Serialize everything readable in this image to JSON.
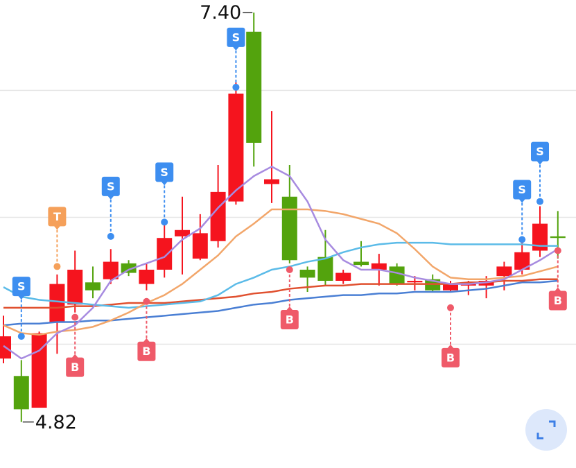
{
  "chart_data": {
    "type": "candlestick",
    "ylim": [
      4.53,
      7.48
    ],
    "gridlines": [
      6.91,
      6.11,
      5.31
    ],
    "up_color": "#f5141e",
    "down_color": "#53a30d",
    "open": [
      5.22,
      5.11,
      4.91,
      5.45,
      5.56,
      5.7,
      5.72,
      5.82,
      5.69,
      5.78,
      5.99,
      5.85,
      5.96,
      6.21,
      7.28,
      6.32,
      6.24,
      5.78,
      5.86,
      5.71,
      5.83,
      5.78,
      5.8,
      5.7,
      5.72,
      5.65,
      5.68,
      5.68,
      5.74,
      5.78,
      5.9,
      5.99
    ],
    "high": [
      5.49,
      5.21,
      5.39,
      5.75,
      5.9,
      5.8,
      5.91,
      5.84,
      5.82,
      6.06,
      6.24,
      6.13,
      6.44,
      6.96,
      7.4,
      6.78,
      6.44,
      5.8,
      6.03,
      5.78,
      5.96,
      5.88,
      5.82,
      5.74,
      5.75,
      5.71,
      5.71,
      5.74,
      5.83,
      5.99,
      6.18,
      6.15
    ],
    "low": [
      5.19,
      4.82,
      4.91,
      5.25,
      5.51,
      5.6,
      5.69,
      5.74,
      5.65,
      5.73,
      5.75,
      5.84,
      5.92,
      6.19,
      6.43,
      6.2,
      5.82,
      5.64,
      5.68,
      5.69,
      5.8,
      5.68,
      5.68,
      5.65,
      5.64,
      5.64,
      5.62,
      5.6,
      5.65,
      5.75,
      5.86,
      5.85
    ],
    "close": [
      5.36,
      4.9,
      5.38,
      5.69,
      5.78,
      5.65,
      5.83,
      5.76,
      5.78,
      5.98,
      6.03,
      6.01,
      6.27,
      6.89,
      6.58,
      6.35,
      5.84,
      5.73,
      5.71,
      5.76,
      5.81,
      5.82,
      5.69,
      5.71,
      5.65,
      5.69,
      5.69,
      5.71,
      5.8,
      5.89,
      6.07,
      5.98
    ],
    "series": [
      {
        "color": "#4a7fd4",
        "values": [
          5.43,
          5.44,
          5.44,
          5.45,
          5.45,
          5.46,
          5.46,
          5.47,
          5.48,
          5.49,
          5.5,
          5.51,
          5.52,
          5.54,
          5.56,
          5.57,
          5.59,
          5.6,
          5.61,
          5.62,
          5.62,
          5.63,
          5.63,
          5.64,
          5.64,
          5.64,
          5.65,
          5.66,
          5.68,
          5.7,
          5.7,
          5.71
        ]
      },
      {
        "color": "#e0502f",
        "values": [
          5.54,
          5.54,
          5.54,
          5.54,
          5.55,
          5.55,
          5.56,
          5.57,
          5.57,
          5.57,
          5.58,
          5.59,
          5.6,
          5.61,
          5.63,
          5.64,
          5.66,
          5.67,
          5.68,
          5.68,
          5.69,
          5.69,
          5.69,
          5.69,
          5.69,
          5.69,
          5.7,
          5.7,
          5.71,
          5.71,
          5.72,
          5.72
        ]
      },
      {
        "color": "#5bbbe8",
        "values": [
          5.67,
          5.61,
          5.59,
          5.58,
          5.57,
          5.56,
          5.55,
          5.54,
          5.55,
          5.56,
          5.57,
          5.58,
          5.62,
          5.69,
          5.73,
          5.78,
          5.8,
          5.83,
          5.85,
          5.89,
          5.92,
          5.94,
          5.95,
          5.95,
          5.95,
          5.94,
          5.94,
          5.94,
          5.94,
          5.94,
          5.93,
          5.93
        ]
      },
      {
        "color": "#f2a66a",
        "values": [
          5.43,
          5.38,
          5.37,
          5.39,
          5.4,
          5.42,
          5.46,
          5.51,
          5.57,
          5.62,
          5.69,
          5.78,
          5.87,
          5.99,
          6.07,
          6.16,
          6.16,
          6.16,
          6.15,
          6.13,
          6.1,
          6.07,
          6.01,
          5.91,
          5.8,
          5.73,
          5.72,
          5.72,
          5.73,
          5.74,
          5.77,
          5.8
        ]
      },
      {
        "color": "#a78be0",
        "values": [
          5.3,
          5.22,
          5.27,
          5.38,
          5.43,
          5.54,
          5.71,
          5.78,
          5.82,
          5.86,
          5.97,
          6.04,
          6.17,
          6.28,
          6.37,
          6.43,
          6.37,
          6.21,
          5.97,
          5.84,
          5.78,
          5.78,
          5.76,
          5.73,
          5.71,
          5.69,
          5.69,
          5.7,
          5.72,
          5.78,
          5.84,
          5.91
        ]
      }
    ],
    "signals": [
      null,
      "S",
      null,
      "T",
      "B",
      null,
      "S",
      null,
      "B",
      "S",
      null,
      null,
      null,
      "S",
      null,
      null,
      "B",
      null,
      null,
      null,
      null,
      null,
      null,
      null,
      null,
      "B",
      null,
      null,
      null,
      "S",
      "S",
      "B"
    ],
    "signal_prices": [
      null,
      5.36,
      null,
      5.8,
      5.48,
      null,
      5.99,
      null,
      5.58,
      6.08,
      null,
      null,
      null,
      6.93,
      null,
      null,
      5.78,
      null,
      null,
      null,
      null,
      null,
      null,
      null,
      null,
      5.54,
      null,
      null,
      null,
      5.97,
      6.21,
      5.9
    ],
    "signal_colors": {
      "S": "#3d8ef0",
      "B": "#ef5a69",
      "T": "#f5a05a"
    },
    "max_price": {
      "value": 7.4,
      "label": "7.40"
    },
    "min_price": 4.82
  }
}
